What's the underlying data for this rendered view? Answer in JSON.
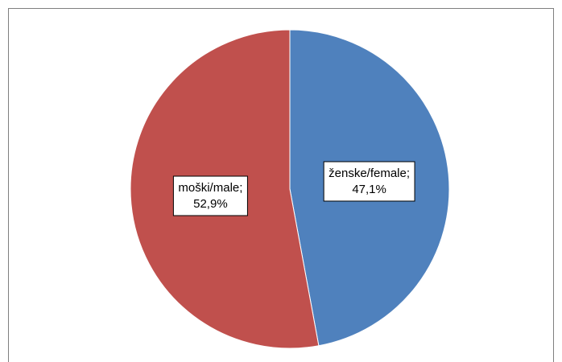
{
  "chart_data": {
    "type": "pie",
    "categories": [
      "ženske/female;",
      "moški/male;"
    ],
    "values": [
      47.1,
      52.9
    ],
    "value_labels": [
      "47,1%",
      "52,9%"
    ],
    "colors": [
      "#4f81bd",
      "#c0504d"
    ]
  }
}
